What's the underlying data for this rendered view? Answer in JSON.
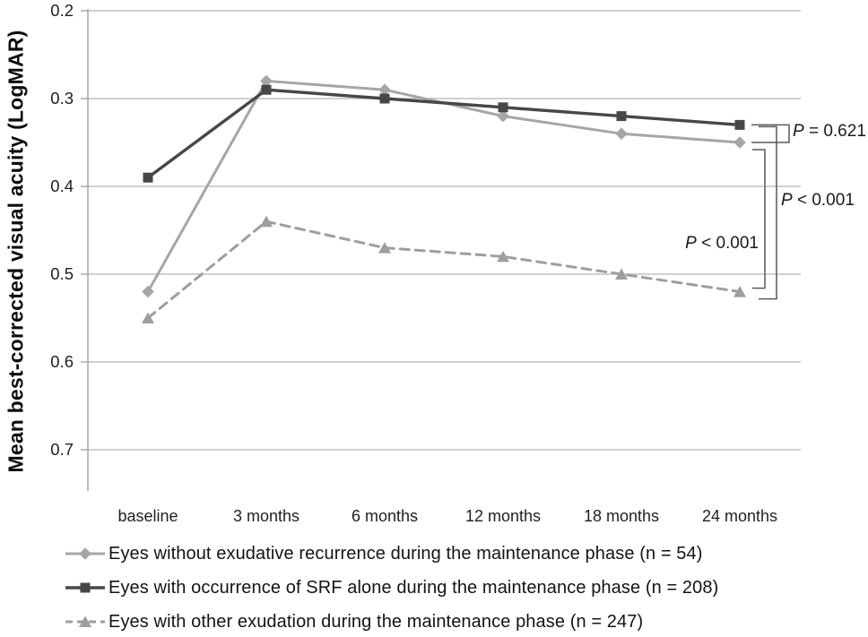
{
  "chart_data": {
    "type": "line",
    "title": "",
    "xlabel": "",
    "ylabel": "Mean best-corrected visual acuity (LogMAR)",
    "categories": [
      "baseline",
      "3 months",
      "6 months",
      "12 months",
      "18 months",
      "24 months"
    ],
    "y_ticks": [
      "0.2",
      "0.3",
      "0.4",
      "0.5",
      "0.6",
      "0.7"
    ],
    "ylim": [
      0.2,
      0.75
    ],
    "y_axis_inverted": true,
    "grid": "horizontal",
    "legend_position": "bottom-left",
    "series": [
      {
        "name": "no-recurrence",
        "label": "Eyes without exudative recurrence during the maintenance phase (n = 54)",
        "marker": "diamond",
        "line_style": "solid",
        "color": "#a6a6a6",
        "values": [
          0.52,
          0.28,
          0.29,
          0.32,
          0.34,
          0.35
        ]
      },
      {
        "name": "srf-alone",
        "label": "Eyes with occurrence of SRF alone during the maintenance phase (n = 208)",
        "marker": "square",
        "line_style": "solid",
        "color": "#474747",
        "values": [
          0.39,
          0.29,
          0.3,
          0.31,
          0.32,
          0.33
        ]
      },
      {
        "name": "other-exudation",
        "label": "Eyes with other exudation during the maintenance phase (n = 247)",
        "marker": "triangle",
        "line_style": "dashed",
        "color": "#9e9e9e",
        "values": [
          0.55,
          0.44,
          0.47,
          0.48,
          0.5,
          0.52
        ]
      }
    ],
    "annotations": [
      {
        "p": "P",
        "rest": " = 0.621",
        "compares": [
          "srf-alone",
          "no-recurrence"
        ]
      },
      {
        "p": "P",
        "rest": " < 0.001",
        "compares": [
          "srf-alone",
          "other-exudation"
        ]
      },
      {
        "p": "P",
        "rest": " < 0.001",
        "compares": [
          "no-recurrence",
          "other-exudation"
        ]
      }
    ],
    "colors": {
      "gridline": "#b5b5b5",
      "axis": "#9e9e9e",
      "bracket": "#595959"
    }
  }
}
